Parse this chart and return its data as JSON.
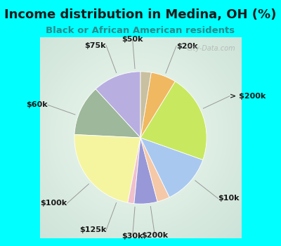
{
  "title": "Income distribution in Medina, OH (%)",
  "subtitle": "Black or African American residents",
  "fig_bg": "#00FFFF",
  "chart_bg_outer": "#a8d8c8",
  "chart_bg_inner": "#f0faf5",
  "labels": [
    "$20k",
    "> $200k",
    "$10k",
    "$200k",
    "$30k",
    "$125k",
    "$100k",
    "$60k",
    "$75k",
    "$50k"
  ],
  "values": [
    11.5,
    12.0,
    22.0,
    1.5,
    5.5,
    3.0,
    12.0,
    21.0,
    6.0,
    2.5
  ],
  "colors": [
    "#b8aee0",
    "#9db89a",
    "#f5f5a0",
    "#f0c0cc",
    "#9898d8",
    "#f5c8a8",
    "#a8c8f0",
    "#c8e860",
    "#f0b860",
    "#c8c0a0"
  ],
  "startangle": 90,
  "label_fontsize": 8,
  "title_fontsize": 13,
  "subtitle_fontsize": 9.5,
  "watermark": "City-Data.com",
  "title_color": "#1a1a1a",
  "subtitle_color": "#2a8a8a"
}
